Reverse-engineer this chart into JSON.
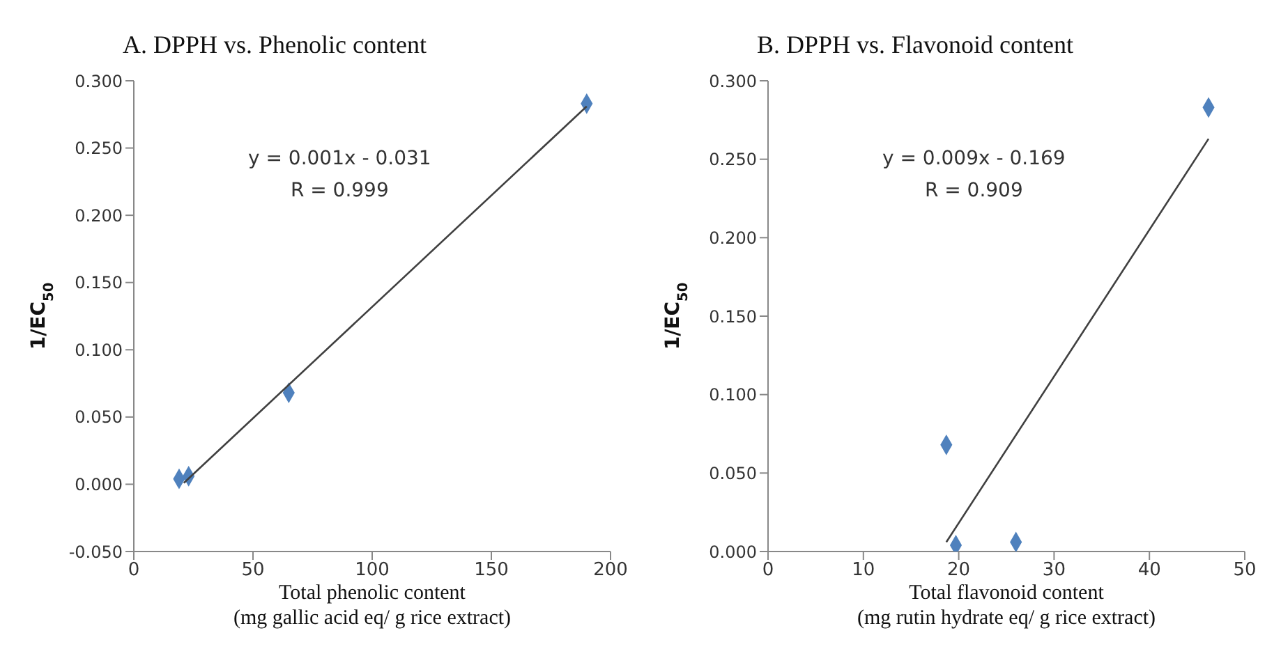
{
  "chart_data": [
    {
      "type": "scatter",
      "title": "A.  DPPH vs. Phenolic content",
      "xlabel": "Total phenolic content\n(mg gallic acid eq/ g rice extract)",
      "ylabel": "1/EC$_{50}$",
      "annotations": [
        "y = 0.001x - 0.031",
        "R = 0.999"
      ],
      "xlim": [
        0,
        200
      ],
      "xticks": [
        0,
        50,
        100,
        150,
        200
      ],
      "ylim": [
        -0.05,
        0.3
      ],
      "yticks": [
        {
          "value": -0.05,
          "label": "-0.050"
        },
        {
          "value": 0,
          "label": "0.000"
        },
        {
          "value": 0.05,
          "label": "0.050"
        },
        {
          "value": 0.1,
          "label": "0.100"
        },
        {
          "value": 0.15,
          "label": "0.150"
        },
        {
          "value": 0.2,
          "label": "0.200"
        },
        {
          "value": 0.25,
          "label": "0.250"
        },
        {
          "value": 0.3,
          "label": "0.300"
        }
      ],
      "grid": false,
      "series": [
        {
          "color": "#4f81bd",
          "marker": "diamond",
          "x": [
            19,
            23,
            65,
            190
          ],
          "values": [
            0.004,
            0.006,
            0.068,
            0.283
          ]
        },
        {
          "type": "line",
          "marker": "none",
          "color": "#404040",
          "x": [
            21,
            190
          ],
          "values": [
            0.001,
            0.281
          ]
        }
      ]
    },
    {
      "type": "scatter",
      "title": "B.  DPPH vs. Flavonoid content",
      "xlabel": "Total flavonoid content\n(mg rutin hydrate eq/ g rice extract)",
      "ylabel": "1/EC$_{50}$",
      "annotations": [
        "y = 0.009x - 0.169",
        "R  = 0.909"
      ],
      "xlim": [
        0,
        50
      ],
      "xticks": [
        0,
        10,
        20,
        30,
        40,
        50
      ],
      "ylim": [
        0,
        0.3
      ],
      "yticks": [
        {
          "value": 0,
          "label": "0.000"
        },
        {
          "value": 0.05,
          "label": "0.050"
        },
        {
          "value": 0.1,
          "label": "0.100"
        },
        {
          "value": 0.15,
          "label": "0.150"
        },
        {
          "value": 0.2,
          "label": "0.200"
        },
        {
          "value": 0.25,
          "label": "0.250"
        },
        {
          "value": 0.3,
          "label": "0.300"
        }
      ],
      "grid": false,
      "series": [
        {
          "color": "#4f81bd",
          "marker": "diamond",
          "x": [
            18.7,
            19.7,
            26,
            46.2
          ],
          "values": [
            0.068,
            0.004,
            0.006,
            0.283
          ]
        },
        {
          "type": "line",
          "marker": "none",
          "color": "#404040",
          "x": [
            18.7,
            46.2
          ],
          "values": [
            0.006,
            0.263
          ]
        }
      ]
    }
  ]
}
